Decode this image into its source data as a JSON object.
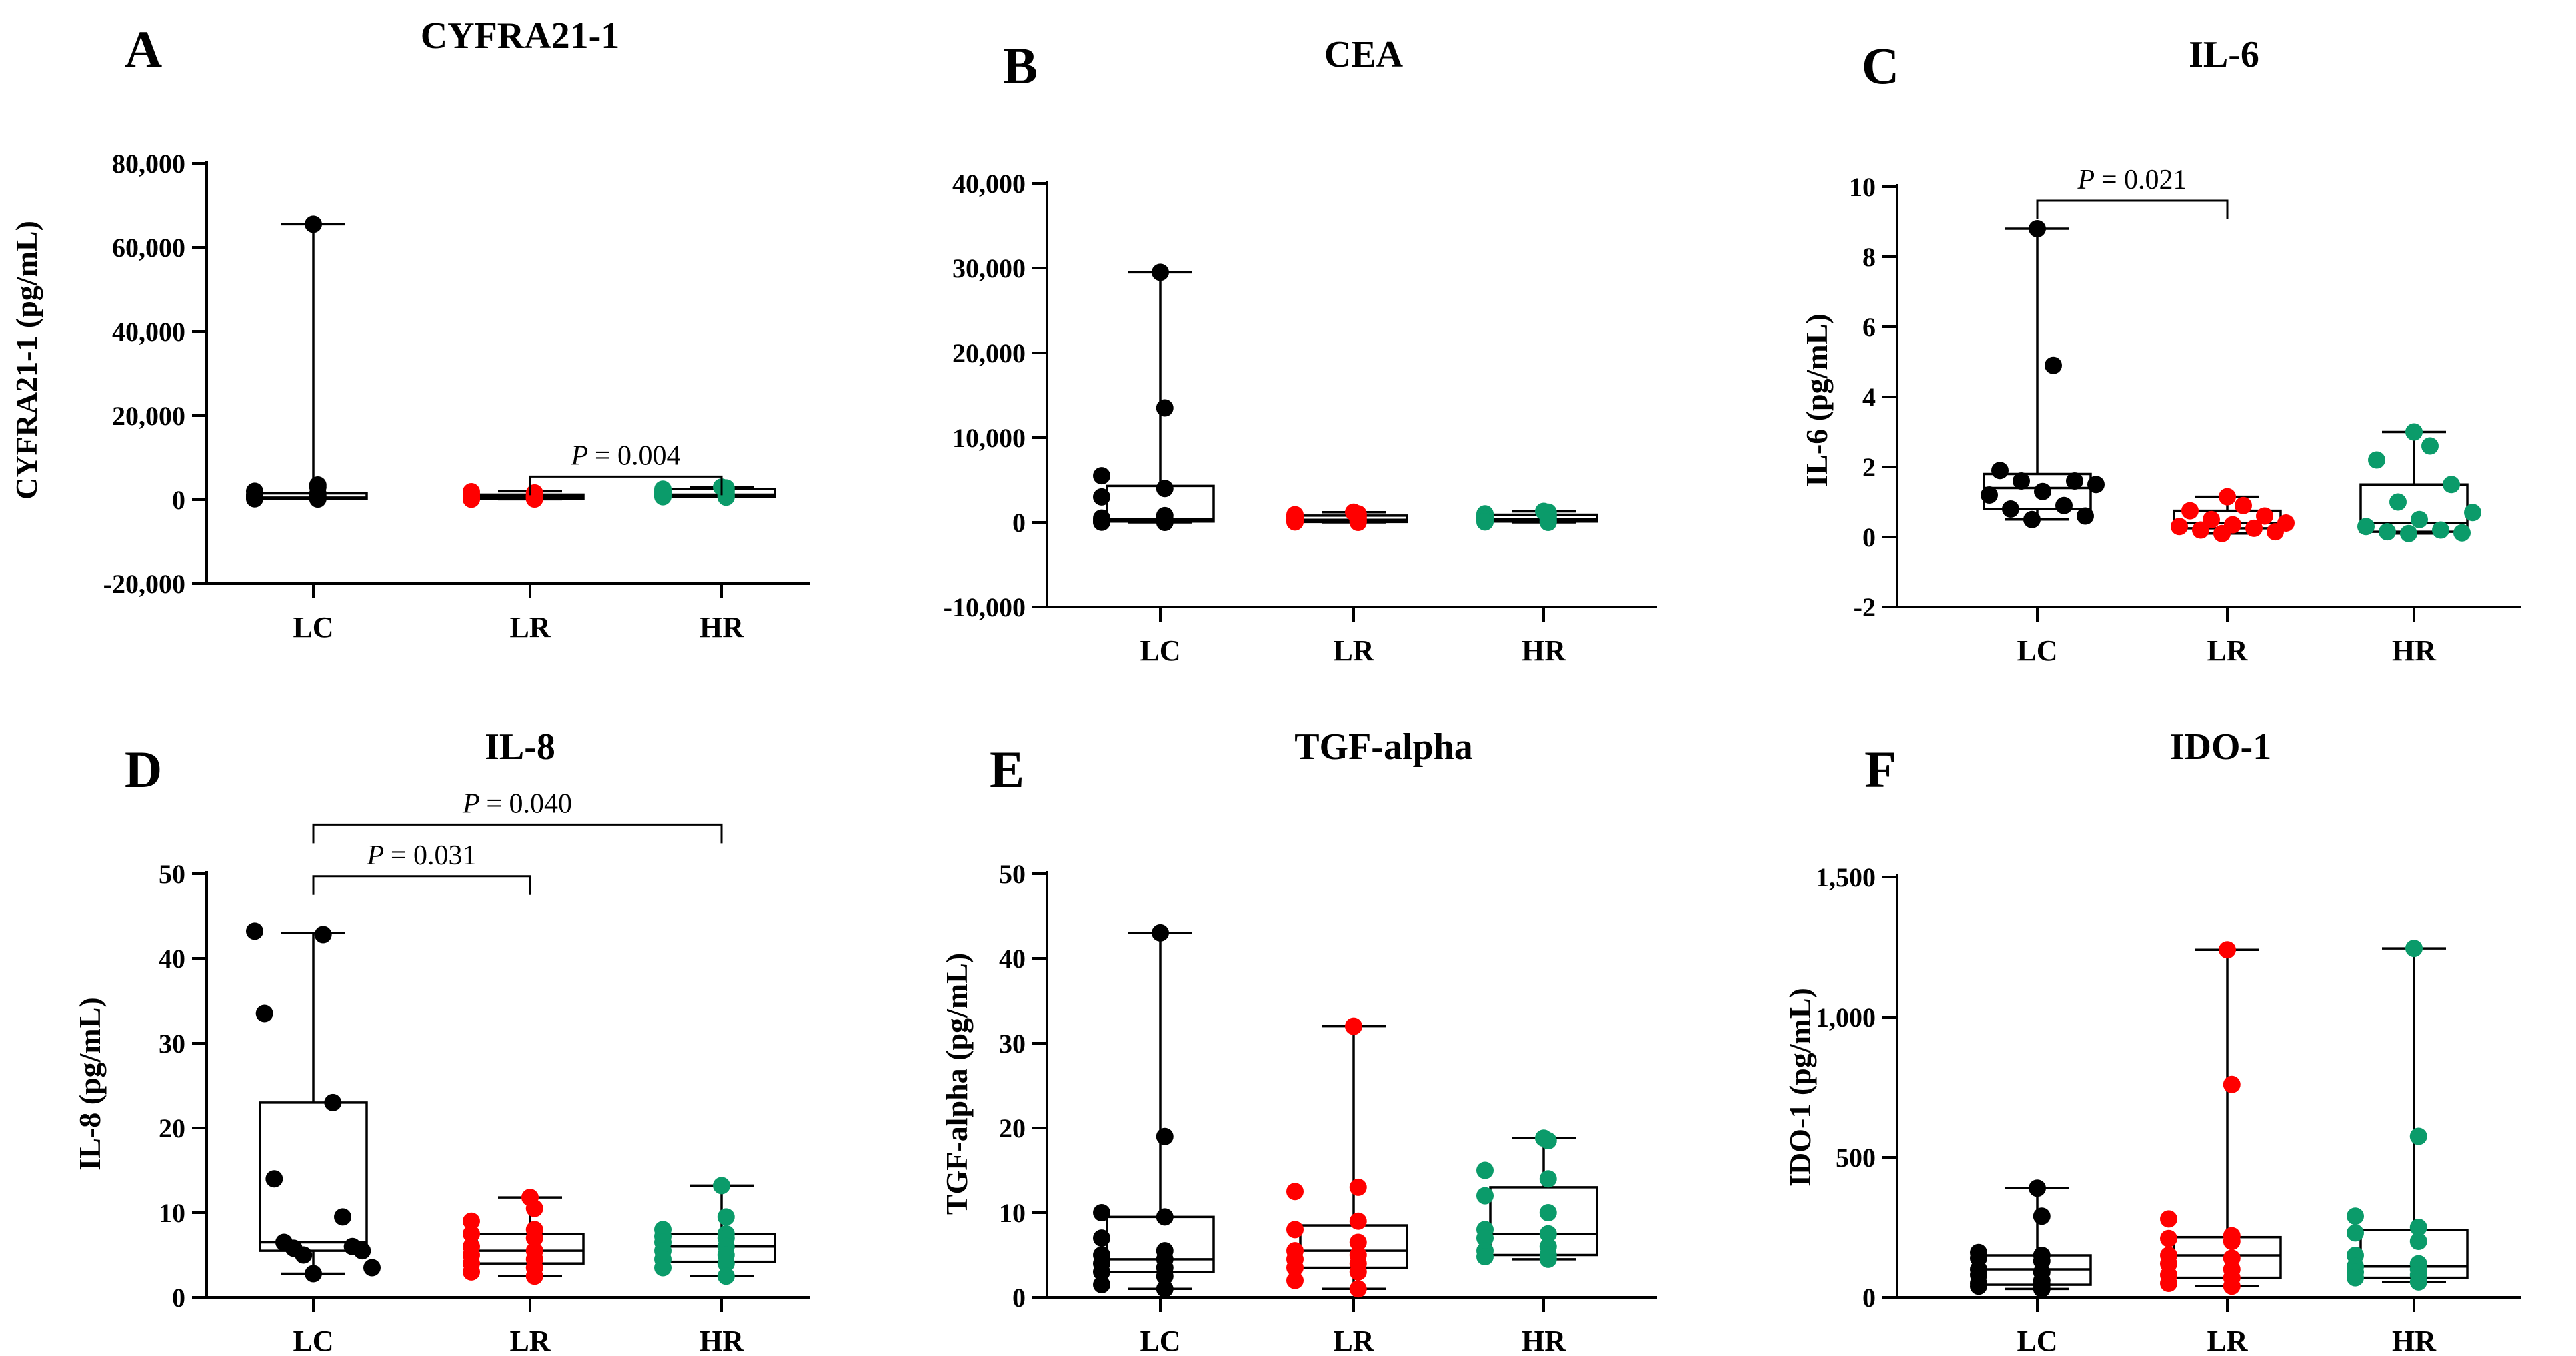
{
  "figure": {
    "panel_letters": [
      "A",
      "B",
      "C",
      "D",
      "E",
      "F"
    ]
  },
  "colors": {
    "LC": "#000000",
    "LR": "#ff0000",
    "HR": "#0b9b6a"
  },
  "chart_data": [
    {
      "panel": "A",
      "type": "box-scatter",
      "title": "CYFRA21-1",
      "ylabel": "CYFRA21-1 (pg/mL)",
      "ylim": [
        -20000,
        80000
      ],
      "yticks": [
        -20000,
        0,
        20000,
        40000,
        60000,
        80000
      ],
      "ytick_labels": [
        "-20,000",
        "0",
        "20,000",
        "40,000",
        "60,000",
        "80,000"
      ],
      "categories": [
        "LC",
        "LR",
        "HR"
      ],
      "groups": [
        {
          "name": "LC",
          "min": 150,
          "q1": 150,
          "median": 500,
          "q3": 1500,
          "max": 65500,
          "points": [
            65500,
            3000,
            2000,
            1500,
            1200,
            900,
            700,
            500,
            400,
            300,
            200,
            3500,
            800,
            150
          ]
        },
        {
          "name": "LR",
          "min": 100,
          "q1": 150,
          "median": 600,
          "q3": 1200,
          "max": 2000,
          "points": [
            1900,
            1600,
            1300,
            1000,
            800,
            700,
            600,
            500,
            400,
            300,
            200,
            150,
            100,
            900
          ]
        },
        {
          "name": "HR",
          "min": 600,
          "q1": 600,
          "median": 1200,
          "q3": 2500,
          "max": 3000,
          "points": [
            3000,
            2800,
            2500,
            2200,
            2000,
            1800,
            1600,
            1400,
            1200,
            1000,
            900,
            800,
            700,
            600
          ]
        }
      ],
      "comparisons": [
        {
          "from": "LR",
          "to": "HR",
          "p_text": "= 0.004",
          "y": 5500
        }
      ]
    },
    {
      "panel": "B",
      "type": "box-scatter",
      "title": "CEA",
      "ylabel": "",
      "ylim": [
        -10000,
        40000
      ],
      "yticks": [
        -10000,
        0,
        10000,
        20000,
        30000,
        40000
      ],
      "ytick_labels": [
        "-10,000",
        "0",
        "10,000",
        "20,000",
        "30,000",
        "40,000"
      ],
      "categories": [
        "LC",
        "LR",
        "HR"
      ],
      "groups": [
        {
          "name": "LC",
          "min": 0,
          "q1": 100,
          "median": 400,
          "q3": 4300,
          "max": 29500,
          "points": [
            29500,
            13500,
            5500,
            4000,
            3000,
            800,
            500,
            400,
            300,
            200,
            100,
            50,
            20,
            0
          ]
        },
        {
          "name": "LR",
          "min": 0,
          "q1": 50,
          "median": 300,
          "q3": 800,
          "max": 1200,
          "points": [
            1200,
            1000,
            900,
            800,
            700,
            600,
            500,
            400,
            300,
            200,
            150,
            100,
            50,
            0
          ]
        },
        {
          "name": "HR",
          "min": 0,
          "q1": 100,
          "median": 400,
          "q3": 900,
          "max": 1300,
          "points": [
            1300,
            1200,
            1000,
            900,
            800,
            700,
            600,
            500,
            400,
            300,
            200,
            100,
            50,
            0
          ]
        }
      ],
      "comparisons": []
    },
    {
      "panel": "C",
      "type": "box-scatter",
      "title": "IL-6",
      "ylabel": "IL-6 (pg/mL)",
      "ylim": [
        -2,
        10
      ],
      "yticks": [
        -2,
        0,
        2,
        4,
        6,
        8,
        10
      ],
      "ytick_labels": [
        "-2",
        "0",
        "2",
        "4",
        "6",
        "8",
        "10"
      ],
      "categories": [
        "LC",
        "LR",
        "HR"
      ],
      "groups": [
        {
          "name": "LC",
          "min": 0.5,
          "q1": 0.8,
          "median": 1.4,
          "q3": 1.8,
          "max": 8.8,
          "points": [
            8.8,
            4.9,
            1.9,
            1.6,
            1.6,
            1.5,
            1.3,
            1.2,
            0.9,
            0.8,
            0.6,
            0.5
          ]
        },
        {
          "name": "LR",
          "min": 0.1,
          "q1": 0.25,
          "median": 0.4,
          "q3": 0.75,
          "max": 1.15,
          "points": [
            1.15,
            0.9,
            0.75,
            0.6,
            0.5,
            0.4,
            0.35,
            0.3,
            0.25,
            0.2,
            0.15,
            0.1
          ]
        },
        {
          "name": "HR",
          "min": 0.1,
          "q1": 0.15,
          "median": 0.4,
          "q3": 1.5,
          "max": 3.0,
          "points": [
            3.0,
            2.6,
            2.2,
            1.5,
            1.0,
            0.7,
            0.5,
            0.3,
            0.2,
            0.15,
            0.12,
            0.1
          ]
        }
      ],
      "comparisons": [
        {
          "from": "LC",
          "to": "LR",
          "p_text": "= 0.021",
          "y": 9.6
        }
      ]
    },
    {
      "panel": "D",
      "type": "box-scatter",
      "title": "IL-8",
      "ylabel": "IL-8 (pg/mL)",
      "ylim": [
        0,
        50
      ],
      "yticks": [
        0,
        10,
        20,
        30,
        40,
        50
      ],
      "ytick_labels": [
        "0",
        "10",
        "20",
        "30",
        "40",
        "50"
      ],
      "categories": [
        "LC",
        "LR",
        "HR"
      ],
      "groups": [
        {
          "name": "LC",
          "min": 2.8,
          "q1": 5.5,
          "median": 6.5,
          "q3": 23,
          "max": 43,
          "points": [
            43.2,
            42.8,
            33.5,
            23.0,
            14.0,
            9.5,
            6.5,
            6.0,
            5.8,
            5.5,
            5.0,
            3.5,
            2.8
          ]
        },
        {
          "name": "LR",
          "min": 2.5,
          "q1": 4.0,
          "median": 5.5,
          "q3": 7.5,
          "max": 11.8,
          "points": [
            11.8,
            10.5,
            9.0,
            8.0,
            7.5,
            7.0,
            6.0,
            5.5,
            5.0,
            4.5,
            4.0,
            3.5,
            3.0,
            2.5
          ]
        },
        {
          "name": "HR",
          "min": 2.5,
          "q1": 4.2,
          "median": 6.0,
          "q3": 7.5,
          "max": 13.2,
          "points": [
            13.2,
            9.5,
            8.0,
            7.5,
            7.2,
            7.0,
            6.5,
            6.0,
            5.5,
            5.0,
            4.5,
            4.0,
            3.5,
            2.5
          ]
        }
      ],
      "comparisons": [
        {
          "from": "LC",
          "to": "LR",
          "p_text": "= 0.031",
          "y": 49.7
        },
        {
          "from": "LC",
          "to": "HR",
          "p_text": "= 0.040",
          "y": 55.8
        }
      ]
    },
    {
      "panel": "E",
      "type": "box-scatter",
      "title": "TGF-alpha",
      "ylabel": "TGF-alpha (pg/mL)",
      "ylim": [
        0,
        50
      ],
      "yticks": [
        0,
        10,
        20,
        30,
        40,
        50
      ],
      "ytick_labels": [
        "0",
        "10",
        "20",
        "30",
        "40",
        "50"
      ],
      "categories": [
        "LC",
        "LR",
        "HR"
      ],
      "groups": [
        {
          "name": "LC",
          "min": 1,
          "q1": 3,
          "median": 4.5,
          "q3": 9.5,
          "max": 43,
          "points": [
            43,
            19,
            10,
            9.5,
            7,
            5.5,
            5,
            4.5,
            4,
            3.5,
            3,
            2.5,
            1.5,
            1
          ]
        },
        {
          "name": "LR",
          "min": 1,
          "q1": 3.5,
          "median": 5.5,
          "q3": 8.5,
          "max": 32,
          "points": [
            32,
            13,
            12.5,
            9,
            8,
            6.5,
            5.5,
            5,
            4.5,
            4,
            3.5,
            3,
            2,
            1
          ]
        },
        {
          "name": "HR",
          "min": 4.5,
          "q1": 5,
          "median": 7.5,
          "q3": 13,
          "max": 18.8,
          "points": [
            18.8,
            18.5,
            15,
            14,
            12,
            10,
            8,
            7.5,
            7,
            6,
            5.5,
            5,
            4.8,
            4.5
          ]
        }
      ],
      "comparisons": []
    },
    {
      "panel": "F",
      "type": "box-scatter",
      "title": "IDO-1",
      "ylabel": "IDO-1 (pg/mL)",
      "ylim": [
        0,
        1500
      ],
      "yticks": [
        0,
        500,
        1000,
        1500
      ],
      "ytick_labels": [
        "0",
        "500",
        "1,000",
        "1,500"
      ],
      "categories": [
        "LC",
        "LR",
        "HR"
      ],
      "groups": [
        {
          "name": "LC",
          "min": 30,
          "q1": 45,
          "median": 100,
          "q3": 150,
          "max": 390,
          "points": [
            390,
            290,
            160,
            150,
            140,
            130,
            100,
            90,
            80,
            60,
            50,
            45,
            40,
            30
          ]
        },
        {
          "name": "LR",
          "min": 40,
          "q1": 70,
          "median": 150,
          "q3": 215,
          "max": 1240,
          "points": [
            1240,
            760,
            280,
            220,
            210,
            200,
            150,
            140,
            120,
            100,
            80,
            70,
            50,
            40
          ]
        },
        {
          "name": "HR",
          "min": 55,
          "q1": 70,
          "median": 110,
          "q3": 240,
          "max": 1245,
          "points": [
            1245,
            575,
            290,
            250,
            230,
            200,
            150,
            120,
            110,
            100,
            90,
            80,
            70,
            55
          ]
        }
      ],
      "comparisons": []
    }
  ]
}
